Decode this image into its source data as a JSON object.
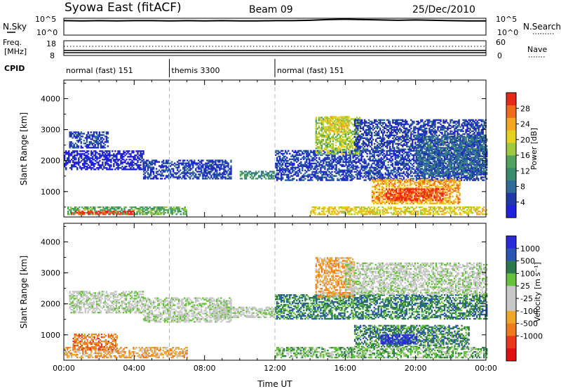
{
  "header": {
    "title": "Syowa East (fitACF)",
    "beam": "Beam 09",
    "date": "25/Dec/2010"
  },
  "chart_data": [
    {
      "type": "line",
      "panel": "noise",
      "left_label": "N.Sky",
      "right_label": "N.Search",
      "left_ticks": [
        "10^5",
        "10^0"
      ],
      "right_ticks": [
        "10^5",
        "10^0"
      ],
      "x": [
        0,
        1,
        2,
        3,
        4,
        5,
        6,
        7,
        8,
        9,
        10,
        11,
        12,
        13,
        14,
        15,
        16,
        17,
        18,
        19,
        20,
        21,
        22,
        23,
        24
      ],
      "series": [
        {
          "name": "N.Sky",
          "values": [
            4.3,
            4.2,
            4.3,
            4.2,
            4.3,
            4.3,
            4.2,
            4.3,
            4.2,
            4.3,
            4.2,
            4.2,
            4.3,
            4.3,
            4.4,
            4.6,
            4.7,
            4.6,
            4.5,
            4.4,
            4.5,
            4.4,
            4.3,
            4.2,
            4.2
          ]
        }
      ],
      "ylim": [
        0,
        5
      ]
    },
    {
      "type": "scatter",
      "panel": "frequency",
      "left_label": "Freq.",
      "left_unit": "[MHz]",
      "right_label": "Nave",
      "left_ticks": [
        "18",
        "8"
      ],
      "right_ticks": [
        "60",
        "0"
      ],
      "frequency_mhz": 11.5,
      "ylim": [
        8,
        18
      ]
    },
    {
      "type": "table",
      "panel": "cpid",
      "label": "CPID",
      "segments": [
        {
          "name": "normal (fast) 151",
          "start_hour": 0,
          "end_hour": 6
        },
        {
          "name": "themis 3300",
          "start_hour": 6,
          "end_hour": 12
        },
        {
          "name": "normal (fast) 151",
          "start_hour": 12,
          "end_hour": 24
        }
      ]
    },
    {
      "type": "heatmap",
      "panel": "power",
      "ylabel": "Slant Range [km]",
      "yticks": [
        "1000",
        "2000",
        "3000",
        "4000"
      ],
      "ylim": [
        180,
        4600
      ],
      "colorbar_label": "Power [dB]",
      "colorbar_ticks": [
        "4",
        "8",
        "12",
        "16",
        "20",
        "24",
        "28"
      ],
      "colormap": [
        "#2020dd",
        "#1f3aa8",
        "#2f6c9c",
        "#3a8a6e",
        "#4fa35e",
        "#9fc93c",
        "#e6d21e",
        "#f5a623",
        "#f06a1a",
        "#e52b17"
      ],
      "echo_regions": [
        {
          "t0": 0.2,
          "t1": 7.0,
          "r0": 250,
          "r1": 500,
          "level": 4
        },
        {
          "t0": 0.4,
          "t1": 4.0,
          "r0": 250,
          "r1": 380,
          "level": 9
        },
        {
          "t0": 0.0,
          "t1": 4.5,
          "r0": 1700,
          "r1": 2300,
          "level": 0
        },
        {
          "t0": 0.3,
          "t1": 2.5,
          "r0": 2400,
          "r1": 2900,
          "level": 1
        },
        {
          "t0": 4.5,
          "t1": 9.5,
          "r0": 1400,
          "r1": 2000,
          "level": 1
        },
        {
          "t0": 10.0,
          "t1": 12.0,
          "r0": 1400,
          "r1": 1650,
          "level": 3
        },
        {
          "t0": 12.0,
          "t1": 24.0,
          "r0": 1350,
          "r1": 2300,
          "level": 1
        },
        {
          "t0": 14.3,
          "t1": 16.8,
          "r0": 2200,
          "r1": 3400,
          "level": 5
        },
        {
          "t0": 14.8,
          "t1": 16.2,
          "r0": 2900,
          "r1": 3400,
          "level": 6
        },
        {
          "t0": 16.5,
          "t1": 24.0,
          "r0": 2300,
          "r1": 3300,
          "level": 1
        },
        {
          "t0": 17.5,
          "t1": 22.5,
          "r0": 600,
          "r1": 1400,
          "level": 7
        },
        {
          "t0": 18.3,
          "t1": 21.5,
          "r0": 700,
          "r1": 1100,
          "level": 9
        },
        {
          "t0": 14.0,
          "t1": 24.0,
          "r0": 250,
          "r1": 500,
          "level": 6
        },
        {
          "t0": 20.0,
          "t1": 24.0,
          "r0": 1500,
          "r1": 2800,
          "level": 2
        }
      ]
    },
    {
      "type": "heatmap",
      "panel": "velocity",
      "ylabel": "Slant Range [km]",
      "yticks": [
        "1000",
        "2000",
        "3000",
        "4000"
      ],
      "ylim": [
        180,
        4600
      ],
      "xlabel": "Time UT",
      "xticks": [
        "00:00",
        "04:00",
        "08:00",
        "12:00",
        "16:00",
        "20:00",
        "00:00"
      ],
      "colorbar_label": "Velocity [m s⁻¹]",
      "colorbar_ticks": [
        "1000",
        "500",
        "100",
        "25",
        "-25",
        "-100",
        "-500",
        "-1000"
      ],
      "colormap": [
        "#2a2ad6",
        "#2a55b4",
        "#2c7a4c",
        "#66c23a",
        "#c8c8c8",
        "#c8c8c8",
        "#f0a628",
        "#f07a1e",
        "#e83a1a",
        "#e01010"
      ],
      "echo_regions": [
        {
          "t0": 0.0,
          "t1": 7.0,
          "r0": 250,
          "r1": 600,
          "level": 6
        },
        {
          "t0": 0.3,
          "t1": 4.5,
          "r0": 1700,
          "r1": 2400,
          "level": 4
        },
        {
          "t0": 4.5,
          "t1": 9.5,
          "r0": 1400,
          "r1": 2200,
          "level": 4
        },
        {
          "t0": 8.5,
          "t1": 12.0,
          "r0": 1550,
          "r1": 1900,
          "level": 4
        },
        {
          "t0": 12.0,
          "t1": 24.0,
          "r0": 1500,
          "r1": 2300,
          "level": 2
        },
        {
          "t0": 14.3,
          "t1": 16.5,
          "r0": 2200,
          "r1": 3500,
          "level": 6
        },
        {
          "t0": 16.0,
          "t1": 24.0,
          "r0": 2300,
          "r1": 3300,
          "level": 4
        },
        {
          "t0": 16.5,
          "t1": 23.0,
          "r0": 600,
          "r1": 1300,
          "level": 2
        },
        {
          "t0": 18.0,
          "t1": 20.0,
          "r0": 700,
          "r1": 1000,
          "level": 0
        },
        {
          "t0": 12.0,
          "t1": 24.0,
          "r0": 250,
          "r1": 600,
          "level": 3
        },
        {
          "t0": 0.5,
          "t1": 3.0,
          "r0": 500,
          "r1": 1000,
          "level": 7
        }
      ]
    }
  ]
}
